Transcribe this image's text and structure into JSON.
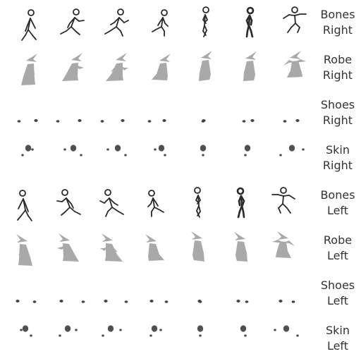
{
  "sheet": {
    "columns": 7,
    "colors": {
      "bones": "#2a2a2a",
      "robe": "#a9a9a9",
      "shoes": "#444444",
      "skin": "#505050",
      "label": "#333333"
    },
    "rows": [
      {
        "layer": "bones",
        "facing": "right",
        "label_lines": [
          "Bones",
          "Right"
        ],
        "icon": "stick-figure-icon"
      },
      {
        "layer": "robe",
        "facing": "right",
        "label_lines": [
          "Robe",
          "Right"
        ],
        "icon": "wizard-robe-icon"
      },
      {
        "layer": "shoes",
        "facing": "right",
        "label_lines": [
          "Shoes",
          "Right"
        ],
        "icon": "shoe-blob-icon"
      },
      {
        "layer": "skin",
        "facing": "right",
        "label_lines": [
          "Skin",
          "Right"
        ],
        "icon": "skin-blob-icon"
      },
      {
        "layer": "bones",
        "facing": "left",
        "label_lines": [
          "Bones",
          "Left"
        ],
        "icon": "stick-figure-icon"
      },
      {
        "layer": "robe",
        "facing": "left",
        "label_lines": [
          "Robe",
          "Left"
        ],
        "icon": "wizard-robe-icon"
      },
      {
        "layer": "shoes",
        "facing": "left",
        "label_lines": [
          "Shoes",
          "Left"
        ],
        "icon": "shoe-blob-icon"
      },
      {
        "layer": "skin",
        "facing": "left",
        "label_lines": [
          "Skin",
          "Left"
        ],
        "icon": "skin-blob-icon"
      }
    ]
  }
}
